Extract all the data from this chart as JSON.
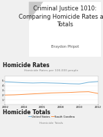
{
  "title_line1": "Criminal Justice 1010:",
  "title_line2": "Comparing Homicide Rates and",
  "title_line3": "Totals",
  "subtitle": "Braydon Phipot",
  "section1_title": "Homicide Rates",
  "section1_chart_title": "Homicide Rates per 100,000 people",
  "section2_title": "Homicide Totals",
  "section2_chart_title": "Homicide Totals",
  "years": [
    2002,
    2003,
    2004,
    2005,
    2006,
    2007,
    2008,
    2009,
    2010,
    2011,
    2012
  ],
  "rates_line1": [
    4.8,
    4.7,
    4.6,
    4.55,
    4.6,
    4.55,
    4.5,
    4.4,
    4.35,
    4.7,
    4.85
  ],
  "rates_line2": [
    2.0,
    2.05,
    2.15,
    2.25,
    2.35,
    2.45,
    2.5,
    2.55,
    2.65,
    2.7,
    2.35
  ],
  "line1_color": "#6baed6",
  "line2_color": "#fd8d3c",
  "legend1": "United States",
  "legend2": "South Carolina",
  "background_color": "#f0f0f0",
  "title_bg": "#ffffff",
  "chart_bg": "#ffffff",
  "title_fontsize": 6.0,
  "subtitle_fontsize": 3.8,
  "section_fontsize": 5.5,
  "chart_title_fontsize": 3.2,
  "tick_fontsize": 2.8,
  "legend_fontsize": 2.8,
  "ylim": [
    0,
    6
  ],
  "yticks": [
    1,
    2,
    3,
    4,
    5
  ]
}
